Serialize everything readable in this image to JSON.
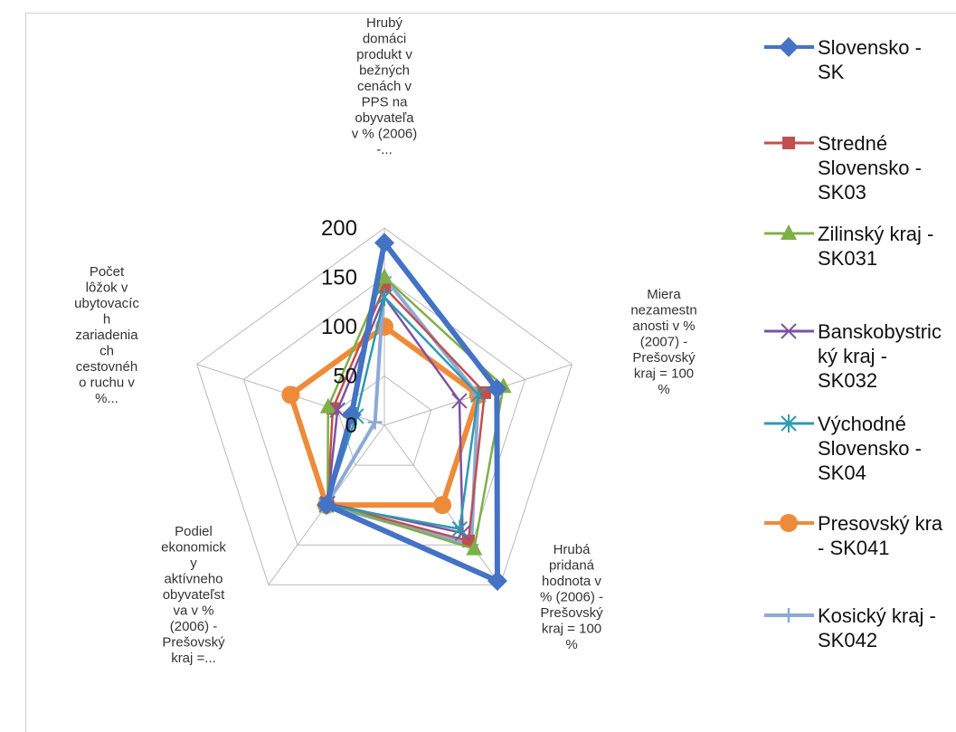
{
  "chart_data": {
    "type": "radar",
    "axes": [
      "Hrubý domáci produkt v bežných cenách v PPS na obyvateľa v % (2006) -...",
      "Miera nezamestnanosti v % (2007) - Prešovský kraj = 100 %",
      "Hrubá pridaná hodnota v % (2006) - Prešovský kraj = 100 %",
      "Podiel ekonomicky aktívneho obyvateľstva v % (2006) - Prešovský kraj =...",
      "Počet lôžok v ubytovacích zariadeniach cestovného ruchu v %..."
    ],
    "axis_label_lines": [
      [
        "Hrubý",
        "domáci",
        "produkt v",
        "bežných",
        "cenách v",
        "PPS na",
        "obyvateľa",
        "v % (2006)",
        "-..."
      ],
      [
        "Miera",
        "nezamestn",
        "anosti v %",
        "(2007) -",
        "Prešovský",
        "kraj = 100",
        "%"
      ],
      [
        "Hrubá",
        "pridaná",
        "hodnota v",
        "% (2006) -",
        "Prešovský",
        "kraj = 100",
        "%"
      ],
      [
        "Podiel",
        "ekonomick",
        "y",
        "aktívneho",
        "obyvateľst",
        "va v %",
        "(2006) -",
        "Prešovský",
        "kraj =..."
      ],
      [
        "Počet",
        "lôžok v",
        "ubytovacíc",
        "h",
        "zariadenia",
        "ch",
        "cestovnéh",
        "o ruchu  v",
        "%..."
      ]
    ],
    "rlim": [
      0,
      200
    ],
    "ticks": [
      "0",
      "50",
      "100",
      "150",
      "200"
    ],
    "series": [
      {
        "name": "Slovensko - SK",
        "legend_lines": [
          "Slovensko -",
          "SK"
        ],
        "color": "#4472C4",
        "marker": "diamond",
        "width": 6,
        "values": [
          185,
          120,
          195,
          100,
          35
        ]
      },
      {
        "name": "Stredné Slovensko - SK03",
        "legend_lines": [
          "Stredné",
          "Slovensko -",
          "SK03"
        ],
        "color": "#C0504D",
        "marker": "square",
        "width": 2.5,
        "values": [
          140,
          107,
          145,
          98,
          55
        ]
      },
      {
        "name": "Zilinský kraj - SK031",
        "legend_lines": [
          "Zilinský kraj -",
          "SK031"
        ],
        "color": "#7FAF47",
        "marker": "triangle",
        "width": 2.5,
        "values": [
          150,
          127,
          155,
          98,
          60
        ]
      },
      {
        "name": "Banskobystrický kraj - SK032",
        "legend_lines": [
          "Banskobystric",
          "ký kraj -",
          "SK032"
        ],
        "color": "#7E52A0",
        "marker": "x",
        "width": 2.5,
        "values": [
          130,
          80,
          135,
          98,
          50
        ]
      },
      {
        "name": "Východné Slovensko - SK04",
        "legend_lines": [
          "Východné",
          "Slovensko -",
          "SK04"
        ],
        "color": "#2F9AB0",
        "marker": "star",
        "width": 2.5,
        "values": [
          130,
          100,
          130,
          100,
          30
        ]
      },
      {
        "name": "Presovský kraj - SK041",
        "legend_lines": [
          "Presovský kra",
          "- SK041"
        ],
        "color": "#EE8B3A",
        "marker": "circle",
        "width": 6,
        "values": [
          100,
          100,
          100,
          100,
          100
        ]
      },
      {
        "name": "Kosický kraj - SK042",
        "legend_lines": [
          "Kosický kraj -",
          "SK042"
        ],
        "color": "#8DA9D7",
        "marker": "plus",
        "width": 4,
        "values": [
          150,
          100,
          150,
          100,
          10
        ]
      }
    ],
    "grid": true,
    "legend": "right"
  }
}
